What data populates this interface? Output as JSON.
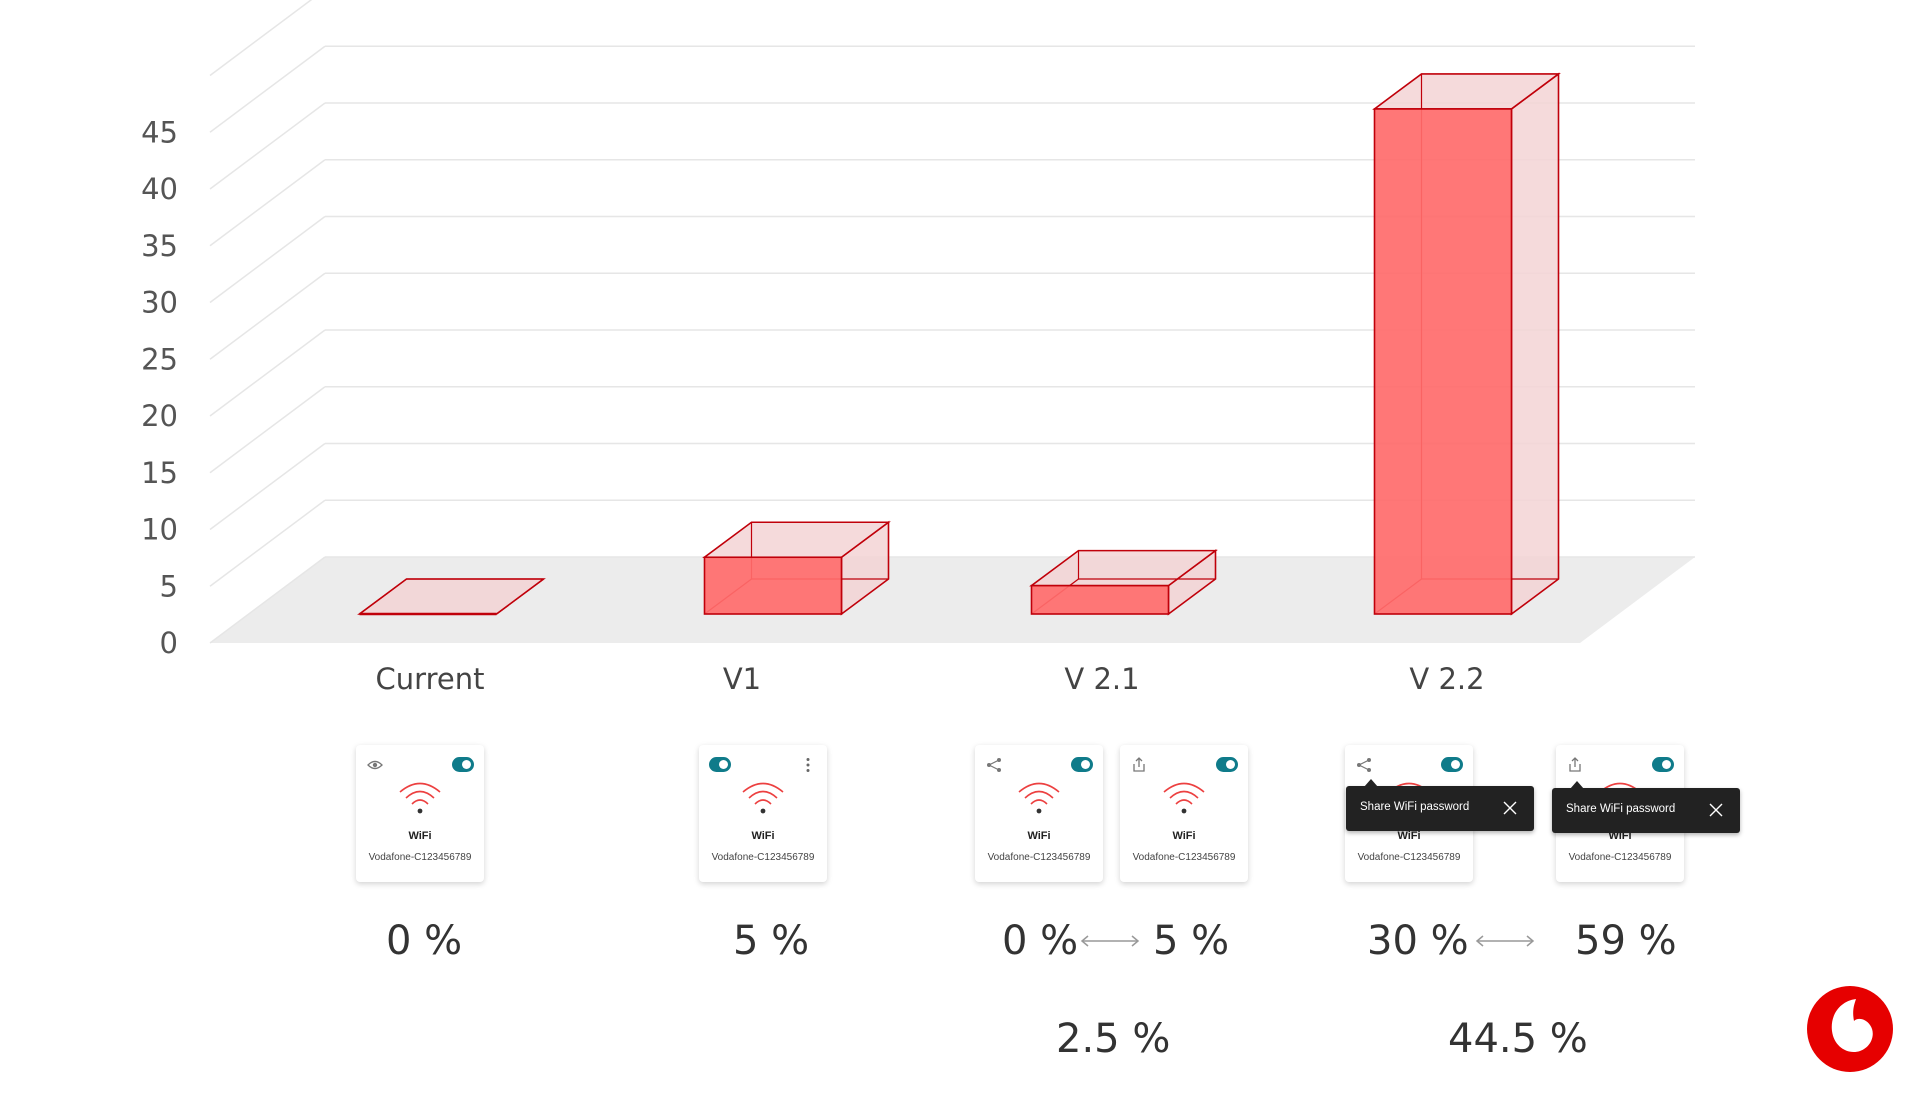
{
  "chart_data": {
    "type": "bar",
    "style": "3d",
    "categories": [
      "Current",
      "V1",
      "V 2.1",
      "V 2.2"
    ],
    "values": [
      0,
      5,
      2.5,
      44.5
    ],
    "ylim": [
      0,
      50
    ],
    "yticks": [
      0,
      5,
      10,
      15,
      20,
      25,
      30,
      35,
      40,
      45
    ],
    "grid": true,
    "bar_color": "#ff6b6b",
    "edge_color": "#c0000a"
  },
  "cards": [
    {
      "left_icon": "eye-icon",
      "toggle": "right",
      "title": "WiFi",
      "network": "Vodafone-C123456789"
    },
    {
      "left_icon": "",
      "toggle": "left",
      "right_icon": "more-vert-icon",
      "title": "WiFi",
      "network": "Vodafone-C123456789"
    },
    {
      "left_icon": "share-icon",
      "toggle": "right",
      "title": "WiFi",
      "network": "Vodafone-C123456789"
    },
    {
      "left_icon": "upload-icon",
      "toggle": "right",
      "title": "WiFi",
      "network": "Vodafone-C123456789"
    },
    {
      "left_icon": "share-icon",
      "toggle": "right",
      "title": "WiFi",
      "network": "Vodafone-C123456789"
    },
    {
      "left_icon": "upload-icon",
      "toggle": "right",
      "title": "WiFi",
      "network": "Vodafone-C123456789"
    }
  ],
  "tooltips": [
    {
      "text": "Share WiFi password"
    },
    {
      "text": "Share WiFi password"
    }
  ],
  "percentages": {
    "current": "0 %",
    "v1": "5 %",
    "v21_low": "0 %",
    "v21_high": "5 %",
    "v22_low": "30 %",
    "v22_high": "59 %",
    "v21_avg": "2.5 %",
    "v22_avg": "44.5 %"
  },
  "colors": {
    "toggle": "#0f7b8a",
    "wifi": "#e60000",
    "logo": "#e60000"
  },
  "logo": "vodafone-logo"
}
